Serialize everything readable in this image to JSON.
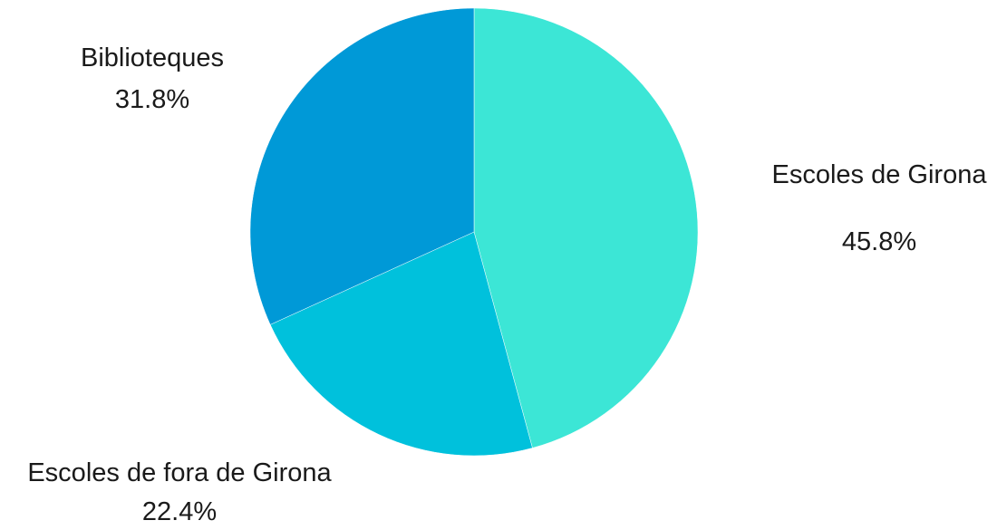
{
  "chart_data": {
    "type": "pie",
    "title": "",
    "categories": [
      "Escoles de Girona",
      "Escoles de fora de Girona",
      "Biblioteques"
    ],
    "values": [
      45.8,
      22.4,
      31.8
    ],
    "value_labels": [
      "45.8%",
      "22.4%",
      "31.8%"
    ],
    "colors": [
      "#3ce6d6",
      "#00c1dc",
      "#0099d7"
    ],
    "start_angle": "12 o'clock",
    "direction": "clockwise",
    "legend": "none (labels placed outside slices)"
  }
}
